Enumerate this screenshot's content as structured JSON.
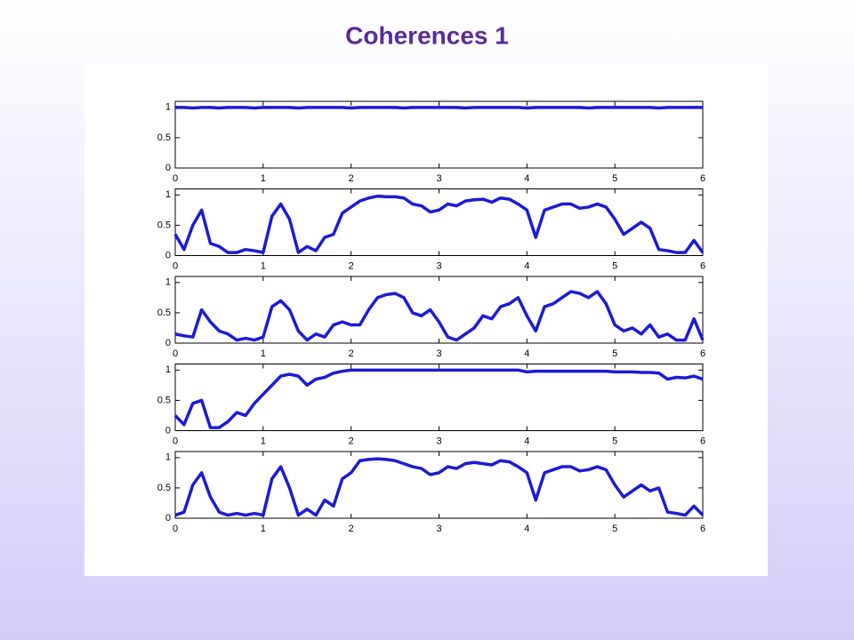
{
  "title": "Coherences 1",
  "chart_data": [
    {
      "type": "line",
      "x": [
        0,
        0.1,
        0.2,
        0.3,
        0.4,
        0.5,
        0.6,
        0.7,
        0.8,
        0.9,
        1,
        1.1,
        1.2,
        1.3,
        1.4,
        1.5,
        1.6,
        1.7,
        1.8,
        1.9,
        2,
        2.1,
        2.2,
        2.3,
        2.4,
        2.5,
        2.6,
        2.7,
        2.8,
        2.9,
        3,
        3.1,
        3.2,
        3.3,
        3.4,
        3.5,
        3.6,
        3.7,
        3.8,
        3.9,
        4,
        4.1,
        4.2,
        4.3,
        4.4,
        4.5,
        4.6,
        4.7,
        4.8,
        4.9,
        5,
        5.1,
        5.2,
        5.3,
        5.4,
        5.5,
        5.6,
        5.7,
        5.8,
        5.9,
        6
      ],
      "series": [
        {
          "color": "#1b1bd6",
          "values": [
            1,
            1,
            0.99,
            1,
            1,
            0.99,
            1,
            1,
            1,
            0.99,
            1,
            1,
            1,
            1,
            0.99,
            1,
            1,
            1,
            1,
            1,
            0.99,
            1,
            1,
            1,
            1,
            1,
            0.99,
            1,
            1,
            1,
            1,
            1,
            1,
            0.99,
            1,
            1,
            1,
            1,
            1,
            1,
            0.99,
            1,
            1,
            1,
            1,
            1,
            1,
            0.99,
            1,
            1,
            1,
            1,
            1,
            1,
            1,
            0.99,
            1,
            1,
            1,
            1,
            1
          ]
        }
      ],
      "xlim": [
        0,
        6
      ],
      "ylim": [
        0,
        1.1
      ],
      "xticks": [
        0,
        1,
        2,
        3,
        4,
        5,
        6
      ],
      "yticks": [
        0,
        0.5,
        1
      ]
    },
    {
      "type": "line",
      "x": [
        0,
        0.1,
        0.2,
        0.3,
        0.4,
        0.5,
        0.6,
        0.7,
        0.8,
        0.9,
        1,
        1.1,
        1.2,
        1.3,
        1.4,
        1.5,
        1.6,
        1.7,
        1.8,
        1.9,
        2,
        2.1,
        2.2,
        2.3,
        2.4,
        2.5,
        2.6,
        2.7,
        2.8,
        2.9,
        3,
        3.1,
        3.2,
        3.3,
        3.4,
        3.5,
        3.6,
        3.7,
        3.8,
        3.9,
        4,
        4.1,
        4.2,
        4.3,
        4.4,
        4.5,
        4.6,
        4.7,
        4.8,
        4.9,
        5,
        5.1,
        5.2,
        5.3,
        5.4,
        5.5,
        5.6,
        5.7,
        5.8,
        5.9,
        6
      ],
      "series": [
        {
          "color": "#1b1bd6",
          "values": [
            0.35,
            0.1,
            0.5,
            0.75,
            0.2,
            0.15,
            0.05,
            0.05,
            0.1,
            0.08,
            0.05,
            0.65,
            0.85,
            0.6,
            0.05,
            0.15,
            0.08,
            0.3,
            0.35,
            0.7,
            0.8,
            0.9,
            0.95,
            0.98,
            0.97,
            0.97,
            0.95,
            0.85,
            0.82,
            0.72,
            0.75,
            0.85,
            0.82,
            0.9,
            0.92,
            0.93,
            0.88,
            0.95,
            0.93,
            0.85,
            0.75,
            0.3,
            0.75,
            0.8,
            0.85,
            0.85,
            0.78,
            0.8,
            0.85,
            0.8,
            0.6,
            0.35,
            0.45,
            0.55,
            0.45,
            0.1,
            0.08,
            0.05,
            0.05,
            0.25,
            0.05
          ]
        }
      ],
      "xlim": [
        0,
        6
      ],
      "ylim": [
        0,
        1.1
      ],
      "xticks": [
        0,
        1,
        2,
        3,
        4,
        5,
        6
      ],
      "yticks": [
        0,
        0.5,
        1
      ]
    },
    {
      "type": "line",
      "x": [
        0,
        0.1,
        0.2,
        0.3,
        0.4,
        0.5,
        0.6,
        0.7,
        0.8,
        0.9,
        1,
        1.1,
        1.2,
        1.3,
        1.4,
        1.5,
        1.6,
        1.7,
        1.8,
        1.9,
        2,
        2.1,
        2.2,
        2.3,
        2.4,
        2.5,
        2.6,
        2.7,
        2.8,
        2.9,
        3,
        3.1,
        3.2,
        3.3,
        3.4,
        3.5,
        3.6,
        3.7,
        3.8,
        3.9,
        4,
        4.1,
        4.2,
        4.3,
        4.4,
        4.5,
        4.6,
        4.7,
        4.8,
        4.9,
        5,
        5.1,
        5.2,
        5.3,
        5.4,
        5.5,
        5.6,
        5.7,
        5.8,
        5.9,
        6
      ],
      "series": [
        {
          "color": "#1b1bd6",
          "values": [
            0.15,
            0.12,
            0.1,
            0.55,
            0.35,
            0.2,
            0.15,
            0.05,
            0.08,
            0.05,
            0.1,
            0.6,
            0.7,
            0.55,
            0.2,
            0.05,
            0.15,
            0.1,
            0.3,
            0.35,
            0.3,
            0.3,
            0.55,
            0.75,
            0.8,
            0.82,
            0.75,
            0.5,
            0.45,
            0.55,
            0.35,
            0.1,
            0.05,
            0.15,
            0.25,
            0.45,
            0.4,
            0.6,
            0.65,
            0.75,
            0.45,
            0.2,
            0.6,
            0.65,
            0.75,
            0.85,
            0.82,
            0.75,
            0.85,
            0.65,
            0.3,
            0.2,
            0.25,
            0.15,
            0.3,
            0.1,
            0.15,
            0.05,
            0.05,
            0.4,
            0.05
          ]
        }
      ],
      "xlim": [
        0,
        6
      ],
      "ylim": [
        0,
        1.1
      ],
      "xticks": [
        0,
        1,
        2,
        3,
        4,
        5,
        6
      ],
      "yticks": [
        0,
        0.5,
        1
      ]
    },
    {
      "type": "line",
      "x": [
        0,
        0.1,
        0.2,
        0.3,
        0.4,
        0.5,
        0.6,
        0.7,
        0.8,
        0.9,
        1,
        1.1,
        1.2,
        1.3,
        1.4,
        1.5,
        1.6,
        1.7,
        1.8,
        1.9,
        2,
        2.1,
        2.2,
        2.3,
        2.4,
        2.5,
        2.6,
        2.7,
        2.8,
        2.9,
        3,
        3.1,
        3.2,
        3.3,
        3.4,
        3.5,
        3.6,
        3.7,
        3.8,
        3.9,
        4,
        4.1,
        4.2,
        4.3,
        4.4,
        4.5,
        4.6,
        4.7,
        4.8,
        4.9,
        5,
        5.1,
        5.2,
        5.3,
        5.4,
        5.5,
        5.6,
        5.7,
        5.8,
        5.9,
        6
      ],
      "series": [
        {
          "color": "#1b1bd6",
          "values": [
            0.25,
            0.1,
            0.45,
            0.5,
            0.05,
            0.05,
            0.15,
            0.3,
            0.25,
            0.45,
            0.6,
            0.75,
            0.9,
            0.93,
            0.9,
            0.75,
            0.85,
            0.88,
            0.95,
            0.98,
            1,
            1,
            1,
            1,
            1,
            1,
            1,
            1,
            1,
            1,
            1,
            1,
            1,
            1,
            1,
            1,
            1,
            1,
            1,
            1,
            0.97,
            0.98,
            0.98,
            0.98,
            0.98,
            0.98,
            0.98,
            0.98,
            0.98,
            0.98,
            0.97,
            0.97,
            0.97,
            0.96,
            0.96,
            0.95,
            0.85,
            0.88,
            0.87,
            0.9,
            0.85
          ]
        }
      ],
      "xlim": [
        0,
        6
      ],
      "ylim": [
        0,
        1.1
      ],
      "xticks": [
        0,
        1,
        2,
        3,
        4,
        5,
        6
      ],
      "yticks": [
        0,
        0.5,
        1
      ]
    },
    {
      "type": "line",
      "x": [
        0,
        0.1,
        0.2,
        0.3,
        0.4,
        0.5,
        0.6,
        0.7,
        0.8,
        0.9,
        1,
        1.1,
        1.2,
        1.3,
        1.4,
        1.5,
        1.6,
        1.7,
        1.8,
        1.9,
        2,
        2.1,
        2.2,
        2.3,
        2.4,
        2.5,
        2.6,
        2.7,
        2.8,
        2.9,
        3,
        3.1,
        3.2,
        3.3,
        3.4,
        3.5,
        3.6,
        3.7,
        3.8,
        3.9,
        4,
        4.1,
        4.2,
        4.3,
        4.4,
        4.5,
        4.6,
        4.7,
        4.8,
        4.9,
        5,
        5.1,
        5.2,
        5.3,
        5.4,
        5.5,
        5.6,
        5.7,
        5.8,
        5.9,
        6
      ],
      "series": [
        {
          "color": "#1b1bd6",
          "values": [
            0.05,
            0.1,
            0.55,
            0.75,
            0.35,
            0.1,
            0.05,
            0.08,
            0.05,
            0.08,
            0.05,
            0.65,
            0.85,
            0.5,
            0.05,
            0.15,
            0.05,
            0.3,
            0.2,
            0.65,
            0.75,
            0.95,
            0.97,
            0.98,
            0.97,
            0.95,
            0.9,
            0.85,
            0.82,
            0.72,
            0.75,
            0.85,
            0.82,
            0.9,
            0.92,
            0.9,
            0.88,
            0.95,
            0.93,
            0.85,
            0.75,
            0.3,
            0.75,
            0.8,
            0.85,
            0.85,
            0.78,
            0.8,
            0.85,
            0.8,
            0.55,
            0.35,
            0.45,
            0.55,
            0.45,
            0.5,
            0.1,
            0.08,
            0.05,
            0.2,
            0.05
          ]
        }
      ],
      "xlim": [
        0,
        6
      ],
      "ylim": [
        0,
        1.1
      ],
      "xticks": [
        0,
        1,
        2,
        3,
        4,
        5,
        6
      ],
      "yticks": [
        0,
        0.5,
        1
      ]
    }
  ]
}
